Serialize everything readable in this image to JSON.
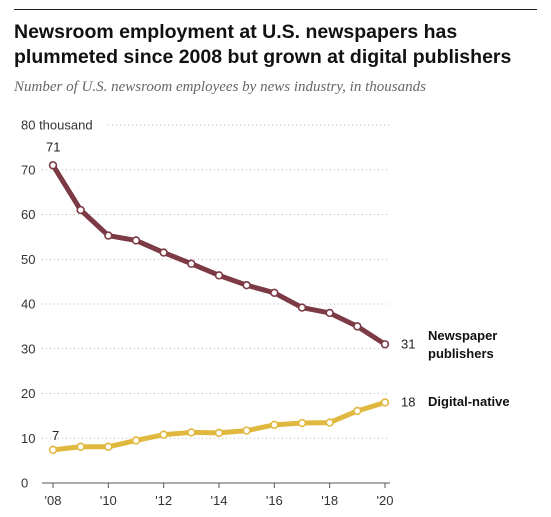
{
  "header": {
    "title": "Newsroom employment at U.S. newspapers has plummeted since 2008 but grown at digital publishers",
    "subtitle": "Number of U.S. newsroom employees by news industry, in thousands"
  },
  "chart_data": {
    "type": "line",
    "x": [
      2008,
      2009,
      2010,
      2011,
      2012,
      2013,
      2014,
      2015,
      2016,
      2017,
      2018,
      2019,
      2020
    ],
    "x_tick_labels": [
      "'08",
      "'10",
      "'12",
      "'14",
      "'16",
      "'18",
      "'20"
    ],
    "x_tick_values": [
      2008,
      2010,
      2012,
      2014,
      2016,
      2018,
      2020
    ],
    "y_ticks": [
      0,
      10,
      20,
      30,
      40,
      50,
      60,
      70,
      80
    ],
    "y_top_label": "80 thousand",
    "ylim": [
      0,
      80
    ],
    "grid": "horizontal dotted",
    "series": [
      {
        "name": "Newspaper publishers",
        "name_lines": [
          "Newspaper",
          "publishers"
        ],
        "color": "#7b3a44",
        "values": [
          71.0,
          61.0,
          55.3,
          54.2,
          51.5,
          49.0,
          46.4,
          44.2,
          42.5,
          39.2,
          38.0,
          35.0,
          31.0
        ],
        "start_label": "71",
        "end_label": "31"
      },
      {
        "name": "Digital-native",
        "name_lines": [
          "Digital-native"
        ],
        "color": "#e1b83f",
        "values": [
          7.4,
          8.1,
          8.1,
          9.5,
          10.8,
          11.3,
          11.2,
          11.7,
          13.0,
          13.4,
          13.5,
          16.1,
          18.0
        ],
        "start_label": "7",
        "end_label": "18"
      }
    ]
  }
}
